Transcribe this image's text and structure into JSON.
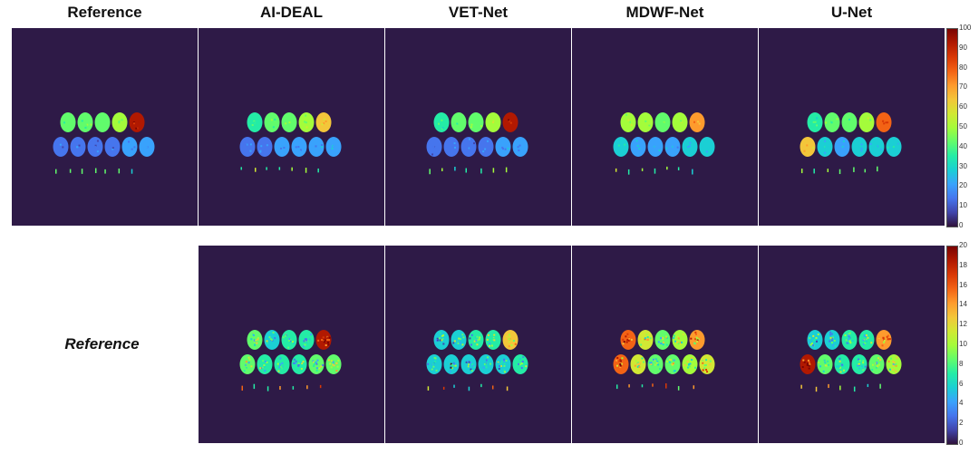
{
  "columns": [
    "Reference",
    "AI-DEAL",
    "VET-Net",
    "MDWF-Net",
    "U-Net"
  ],
  "row_labels": {
    "bottom": "Reference"
  },
  "colorbars": {
    "top": {
      "ticks": [
        "100",
        "90",
        "80",
        "70",
        "60",
        "50",
        "40",
        "30",
        "20",
        "10",
        "0"
      ]
    },
    "bottom": {
      "ticks": [
        "20",
        "18",
        "16",
        "14",
        "12",
        "10",
        "8",
        "6",
        "4",
        "2",
        "0"
      ]
    }
  },
  "colors": {
    "background_panel": "#2e1a47",
    "colormap": [
      "#30123b",
      "#4145ab",
      "#4675ed",
      "#39a2fc",
      "#1bcfd4",
      "#24eca6",
      "#61fc6c",
      "#a4fc3b",
      "#d1e834",
      "#f3c63a",
      "#fe9b2d",
      "#f36315",
      "#d93806",
      "#b11901",
      "#7a0402"
    ]
  },
  "panels": {
    "top": [
      {
        "name": "reference",
        "tubes_top": [
          0.4,
          0.42,
          0.45,
          0.47,
          0.92
        ],
        "tubes_bottom": [
          0.12,
          0.14,
          0.16,
          0.16,
          0.18,
          0.22
        ]
      },
      {
        "name": "ai-deal",
        "tubes_top": [
          0.38,
          0.41,
          0.44,
          0.48,
          0.65
        ],
        "tubes_bottom": [
          0.17,
          0.17,
          0.2,
          0.2,
          0.22,
          0.24
        ]
      },
      {
        "name": "vet-net",
        "tubes_top": [
          0.38,
          0.42,
          0.45,
          0.52,
          0.92
        ],
        "tubes_bottom": [
          0.15,
          0.16,
          0.16,
          0.17,
          0.18,
          0.22
        ]
      },
      {
        "name": "mdwf-net",
        "tubes_top": [
          0.52,
          0.48,
          0.46,
          0.48,
          0.72
        ],
        "tubes_bottom": [
          0.3,
          0.24,
          0.22,
          0.24,
          0.25,
          0.3
        ]
      },
      {
        "name": "u-net",
        "tubes_top": [
          0.38,
          0.42,
          0.46,
          0.48,
          0.82
        ],
        "tubes_bottom": [
          0.66,
          0.26,
          0.24,
          0.26,
          0.27,
          0.3
        ]
      }
    ],
    "bottom": [
      {
        "name": "ai-deal-error",
        "tubes_top": [
          0.4,
          0.32,
          0.34,
          0.36,
          0.95
        ],
        "tubes_bottom": [
          0.45,
          0.38,
          0.36,
          0.34,
          0.4,
          0.45
        ]
      },
      {
        "name": "vet-net-error",
        "tubes_top": [
          0.3,
          0.32,
          0.34,
          0.38,
          0.62
        ],
        "tubes_bottom": [
          0.3,
          0.28,
          0.28,
          0.3,
          0.32,
          0.34
        ]
      },
      {
        "name": "mdwf-net-error",
        "tubes_top": [
          0.8,
          0.55,
          0.45,
          0.5,
          0.7
        ],
        "tubes_bottom": [
          0.75,
          0.55,
          0.42,
          0.45,
          0.5,
          0.6
        ]
      },
      {
        "name": "u-net-error",
        "tubes_top": [
          0.3,
          0.32,
          0.34,
          0.36,
          0.68
        ],
        "tubes_bottom": [
          0.92,
          0.4,
          0.36,
          0.38,
          0.42,
          0.48
        ]
      }
    ]
  }
}
